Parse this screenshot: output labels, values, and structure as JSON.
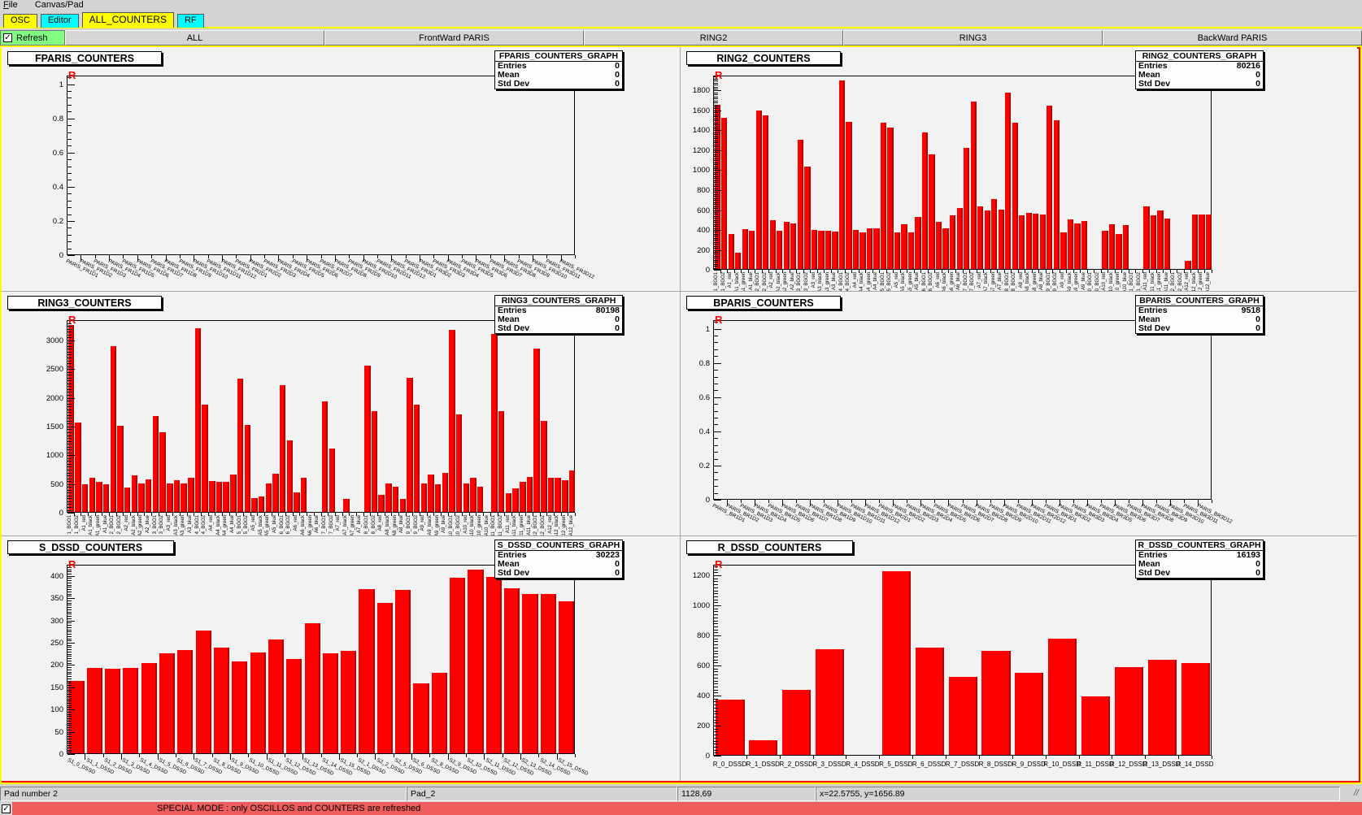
{
  "menu": {
    "items": [
      "File",
      "Canvas/Pad"
    ]
  },
  "tabs": [
    {
      "label": "OSC",
      "color": "#ffff00",
      "active": false
    },
    {
      "label": "Editor",
      "color": "#00ffff",
      "active": false
    },
    {
      "label": "ALL_COUNTERS",
      "color": "#ffff00",
      "active": true
    },
    {
      "label": "RF",
      "color": "#00ffff",
      "active": false
    }
  ],
  "toolbar": {
    "refresh_label": "Refresh",
    "buttons": [
      "ALL",
      "FrontWard PARIS",
      "RING2",
      "RING3",
      "BackWard PARIS"
    ]
  },
  "stats_labels": [
    "Entries",
    "Mean",
    "Std Dev"
  ],
  "marker": "R",
  "status_bar": {
    "cells": [
      "Pad number 2",
      "Pad_2",
      "1128,69",
      "x=22.5755, y=1656.89"
    ],
    "grip": "//"
  },
  "banner": {
    "text": "SPECIAL MODE : only OSCILLOS and COUNTERS are refreshed",
    "color": "#f05d5d"
  },
  "colors": {
    "bar": "#ff0000",
    "canvas_border": "#ffff00",
    "pad_highlight": "#ff0000",
    "refresh_bg": "#80ff80",
    "tab_yellow": "#ffff00",
    "tab_cyan": "#00ffff"
  },
  "chart_data": [
    {
      "id": "fparis",
      "type": "bar",
      "title": "FPARIS_COUNTERS",
      "stats": {
        "header": "FPARIS_COUNTERS_GRAPH",
        "entries": "0",
        "mean": "0",
        "stddev": "0"
      },
      "ylim": [
        0,
        1.05
      ],
      "yticks": [
        [
          0,
          "0"
        ],
        [
          0.2,
          "0.2"
        ],
        [
          0.4,
          "0.4"
        ],
        [
          0.6,
          "0.6"
        ],
        [
          0.8,
          "0.8"
        ],
        [
          1,
          "1"
        ]
      ],
      "categories": [
        "PARIS_FR1D1",
        "PARIS_FR1D2",
        "PARIS_FR1D3",
        "PARIS_FR1D4",
        "PARIS_FR1D5",
        "PARIS_FR1D6",
        "PARIS_FR1D7",
        "PARIS_FR1D8",
        "PARIS_FR1D9",
        "PARIS_FR1D10",
        "PARIS_FR1D11",
        "PARIS_FR1D12",
        "PARIS_FR2D1",
        "PARIS_FR2D2",
        "PARIS_FR2D3",
        "PARIS_FR2D4",
        "PARIS_FR2D5",
        "PARIS_FR2D6",
        "PARIS_FR2D7",
        "PARIS_FR2D8",
        "PARIS_FR2D9",
        "PARIS_FR2D10",
        "PARIS_FR2D11",
        "PARIS_FR2D12",
        "PARIS_FR3D1",
        "PARIS_FR3D2",
        "PARIS_FR3D3",
        "PARIS_FR3D4",
        "PARIS_FR3D5",
        "PARIS_FR3D6",
        "PARIS_FR3D7",
        "PARIS_FR3D8",
        "PARIS_FR3D9",
        "PARIS_FR3D10",
        "PARIS_FR3D11",
        "PARIS_FR3D12"
      ],
      "values": [
        0,
        0,
        0,
        0,
        0,
        0,
        0,
        0,
        0,
        0,
        0,
        0,
        0,
        0,
        0,
        0,
        0,
        0,
        0,
        0,
        0,
        0,
        0,
        0,
        0,
        0,
        0,
        0,
        0,
        0,
        0,
        0,
        0,
        0,
        0,
        0
      ]
    },
    {
      "id": "ring2",
      "type": "bar",
      "title": "RING2_COUNTERS",
      "stats": {
        "header": "RING2_COUNTERS_GRAPH",
        "entries": "80216",
        "mean": "0",
        "stddev": "0"
      },
      "ylim": [
        0,
        1950
      ],
      "yticks": [
        [
          0,
          "0"
        ],
        [
          200,
          "200"
        ],
        [
          400,
          "400"
        ],
        [
          600,
          "600"
        ],
        [
          800,
          "800"
        ],
        [
          1000,
          "1000"
        ],
        [
          1200,
          "1200"
        ],
        [
          1400,
          "1400"
        ],
        [
          1600,
          "1600"
        ],
        [
          1800,
          "1800"
        ]
      ],
      "categories": [
        "1_BGO1",
        "1_BGO2",
        "A1_red",
        "A1_black",
        "A1_green",
        "A1_blue",
        "2_BGO1",
        "2_BGO2",
        "A2_red",
        "A2_black",
        "A2_green",
        "A2_blue",
        "3_BGO1",
        "3_BGO2",
        "A3_red",
        "A3_black",
        "A3_green",
        "A3_blue",
        "4_BGO1",
        "4_BGO2",
        "A4_red",
        "A4_black",
        "A4_green",
        "A4_blue",
        "5_BGO1",
        "5_BGO2",
        "A5_red",
        "A5_black",
        "A5_green",
        "A5_blue",
        "6_BGO1",
        "6_BGO2",
        "A6_red",
        "A6_black",
        "A6_green",
        "A6_blue",
        "7_BGO1",
        "7_BGO2",
        "A7_red",
        "A7_black",
        "A7_green",
        "A7_blue",
        "8_BGO1",
        "8_BGO2",
        "A8_red",
        "A8_black",
        "A8_green",
        "A8_blue",
        "9_BGO1",
        "9_BGO2",
        "A9_red",
        "A9_black",
        "A9_green",
        "A9_blue",
        "10_BGO1",
        "10_BGO2",
        "A10_red",
        "A10_black",
        "A10_green",
        "A10_blue",
        "11_BGO1",
        "11_BGO2",
        "A11_red",
        "A11_black",
        "A11_green",
        "A11_blue",
        "12_BGO1",
        "12_BGO2",
        "A12_red",
        "A12_black",
        "A12_green",
        "A12_blue"
      ],
      "values": [
        1650,
        1520,
        350,
        160,
        400,
        385,
        1590,
        1540,
        490,
        385,
        475,
        460,
        1300,
        1030,
        390,
        385,
        385,
        375,
        1890,
        1480,
        390,
        370,
        410,
        410,
        1470,
        1420,
        370,
        450,
        370,
        520,
        1375,
        1150,
        470,
        410,
        535,
        615,
        1220,
        1680,
        630,
        590,
        700,
        600,
        1770,
        1470,
        535,
        565,
        558,
        545,
        1640,
        1490,
        365,
        500,
        455,
        480,
        0,
        0,
        385,
        450,
        350,
        440,
        0,
        0,
        630,
        540,
        590,
        510,
        0,
        0,
        80,
        545,
        545,
        550
      ]
    },
    {
      "id": "ring3",
      "type": "bar",
      "title": "RING3_COUNTERS",
      "stats": {
        "header": "RING3_COUNTERS_GRAPH",
        "entries": "80198",
        "mean": "0",
        "stddev": "0"
      },
      "ylim": [
        0,
        3350
      ],
      "yticks": [
        [
          0,
          "0"
        ],
        [
          500,
          "500"
        ],
        [
          1000,
          "1000"
        ],
        [
          1500,
          "1500"
        ],
        [
          2000,
          "2000"
        ],
        [
          2500,
          "2500"
        ],
        [
          3000,
          "3000"
        ]
      ],
      "categories": [
        "1_BGO1",
        "1_BGO2",
        "A1_red",
        "A1_black",
        "A1_green",
        "A1_blue",
        "2_BGO1",
        "2_BGO2",
        "A2_red",
        "A2_black",
        "A2_green",
        "A2_blue",
        "3_BGO1",
        "3_BGO2",
        "A3_red",
        "A3_black",
        "A3_green",
        "A3_blue",
        "4_BGO1",
        "4_BGO2",
        "A4_red",
        "A4_black",
        "A4_green",
        "A4_blue",
        "5_BGO1",
        "5_BGO2",
        "A5_red",
        "A5_black",
        "A5_green",
        "A5_blue",
        "6_BGO1",
        "6_BGO2",
        "A6_red",
        "A6_black",
        "A6_green",
        "A6_blue",
        "7_BGO1",
        "7_BGO2",
        "A7_red",
        "A7_black",
        "A7_green",
        "A7_blue",
        "8_BGO1",
        "8_BGO2",
        "A8_red",
        "A8_black",
        "A8_green",
        "A8_blue",
        "9_BGO1",
        "9_BGO2",
        "A9_red",
        "A9_black",
        "A9_green",
        "A9_blue",
        "10_BGO1",
        "10_BGO2",
        "A10_red",
        "A10_black",
        "A10_green",
        "A10_blue",
        "11_BGO1",
        "11_BGO2",
        "A11_red",
        "A11_black",
        "A11_green",
        "A11_blue",
        "12_BGO1",
        "12_BGO2",
        "A12_red",
        "A12_black",
        "A12_green",
        "A12_blue"
      ],
      "values": [
        3250,
        1550,
        480,
        600,
        530,
        480,
        2880,
        1500,
        430,
        640,
        500,
        560,
        1670,
        1390,
        490,
        555,
        500,
        600,
        3200,
        1860,
        540,
        530,
        525,
        650,
        2320,
        1510,
        240,
        270,
        500,
        660,
        2200,
        1250,
        340,
        600,
        0,
        0,
        1920,
        1110,
        0,
        230,
        0,
        0,
        2550,
        1755,
        300,
        490,
        445,
        230,
        2330,
        1870,
        500,
        655,
        475,
        680,
        3170,
        1700,
        500,
        600,
        445,
        0,
        3100,
        1755,
        330,
        415,
        525,
        610,
        2840,
        1590,
        600,
        600,
        545,
        720
      ]
    },
    {
      "id": "bparis",
      "type": "bar",
      "title": "BPARIS_COUNTERS",
      "stats": {
        "header": "BPARIS_COUNTERS_GRAPH",
        "entries": "9518",
        "mean": "0",
        "stddev": "0"
      },
      "ylim": [
        0,
        1.05
      ],
      "yticks": [
        [
          0,
          "0"
        ],
        [
          0.2,
          "0.2"
        ],
        [
          0.4,
          "0.4"
        ],
        [
          0.6,
          "0.6"
        ],
        [
          0.8,
          "0.8"
        ],
        [
          1,
          "1"
        ]
      ],
      "categories": [
        "PARIS_BR1D1",
        "PARIS_BR1D2",
        "PARIS_BR1D3",
        "PARIS_BR1D4",
        "PARIS_BR1D5",
        "PARIS_BR1D6",
        "PARIS_BR1D7",
        "PARIS_BR1D8",
        "PARIS_BR1D9",
        "PARIS_BR1D10",
        "PARIS_BR1D11",
        "PARIS_BR1D12",
        "PARIS_BR2D1",
        "PARIS_BR2D2",
        "PARIS_BR2D3",
        "PARIS_BR2D4",
        "PARIS_BR2D5",
        "PARIS_BR2D6",
        "PARIS_BR2D7",
        "PARIS_BR2D8",
        "PARIS_BR2D9",
        "PARIS_BR2D10",
        "PARIS_BR2D11",
        "PARIS_BR2D12",
        "PARIS_BR3D1",
        "PARIS_BR3D2",
        "PARIS_BR3D3",
        "PARIS_BR3D4",
        "PARIS_BR3D5",
        "PARIS_BR3D6",
        "PARIS_BR3D7",
        "PARIS_BR3D8",
        "PARIS_BR3D9",
        "PARIS_BR3D10",
        "PARIS_BR3D11",
        "PARIS_BR3D12"
      ],
      "values": [
        0,
        0,
        0,
        0,
        0,
        0,
        0,
        0,
        0,
        0,
        0,
        0,
        0,
        0,
        0,
        0,
        0,
        0,
        0,
        0,
        0,
        0,
        0,
        0,
        0,
        0,
        0,
        0,
        0,
        0,
        0,
        0,
        0,
        0,
        0,
        0
      ]
    },
    {
      "id": "s_dssd",
      "type": "bar",
      "title": "S_DSSD_COUNTERS",
      "stats": {
        "header": "S_DSSD_COUNTERS_GRAPH",
        "entries": "30223",
        "mean": "0",
        "stddev": "0"
      },
      "ylim": [
        0,
        425
      ],
      "yticks": [
        [
          0,
          "0"
        ],
        [
          50,
          "50"
        ],
        [
          100,
          "100"
        ],
        [
          150,
          "150"
        ],
        [
          200,
          "200"
        ],
        [
          250,
          "250"
        ],
        [
          300,
          "300"
        ],
        [
          350,
          "350"
        ],
        [
          400,
          "400"
        ]
      ],
      "categories": [
        "S1_0_DSSD",
        "S1_1_DSSD",
        "S1_2_DSSD",
        "S1_3_DSSD",
        "S1_4_DSSD",
        "S1_5_DSSD",
        "S1_6_DSSD",
        "S1_7_DSSD",
        "S1_8_DSSD",
        "S1_9_DSSD",
        "S1_10_DSSD",
        "S1_11_DSSD",
        "S1_12_DSSD",
        "S1_13_DSSD",
        "S1_14_DSSD",
        "S1_15_DSSD",
        "S2_1_DSSD",
        "S2_2_DSSD",
        "S2_5_DSSD",
        "S2_6_DSSD",
        "S2_8_DSSD",
        "S2_9_DSSD",
        "S2_10_DSSD",
        "S2_11_DSSD",
        "S2_12_DSSD",
        "S2_13_DSSD",
        "S2_14_DSSD",
        "S2_15_DSSD"
      ],
      "values": [
        163,
        192,
        190,
        192,
        203,
        224,
        231,
        275,
        237,
        206,
        226,
        256,
        212,
        292,
        224,
        230,
        369,
        337,
        367,
        157,
        181,
        394,
        413,
        396,
        371,
        358,
        357,
        342
      ]
    },
    {
      "id": "r_dssd",
      "type": "bar",
      "title": "R_DSSD_COUNTERS",
      "stats": {
        "header": "R_DSSD_COUNTERS_GRAPH",
        "entries": "16193",
        "mean": "0",
        "stddev": "0"
      },
      "ylim": [
        0,
        1270
      ],
      "yticks": [
        [
          0,
          "0"
        ],
        [
          200,
          "200"
        ],
        [
          400,
          "400"
        ],
        [
          600,
          "600"
        ],
        [
          800,
          "800"
        ],
        [
          1000,
          "1000"
        ],
        [
          1200,
          "1200"
        ]
      ],
      "categories": [
        "R_0_DSSD",
        "R_1_DSSD",
        "R_2_DSSD",
        "R_3_DSSD",
        "R_4_DSSD",
        "R_5_DSSD",
        "R_6_DSSD",
        "R_7_DSSD",
        "R_8_DSSD",
        "R_9_DSSD",
        "R_10_DSSD",
        "R_11_DSSD",
        "R_12_DSSD",
        "R_13_DSSD",
        "R_14_DSSD"
      ],
      "values": [
        370,
        95,
        435,
        705,
        0,
        1220,
        715,
        520,
        690,
        545,
        775,
        390,
        585,
        635,
        610
      ]
    }
  ]
}
